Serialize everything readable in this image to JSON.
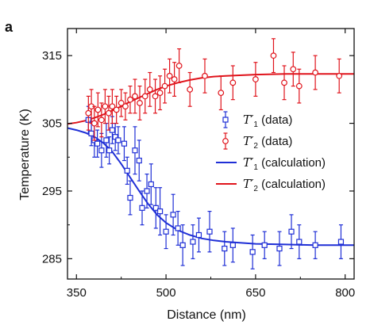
{
  "chart_data": {
    "type": "scatter",
    "panel_label": "a",
    "xlabel": "Distance (nm)",
    "ylabel": "Temperature (K)",
    "xlim": [
      335,
      815
    ],
    "ylim": [
      282,
      319
    ],
    "x_ticks": [
      350,
      500,
      650,
      800
    ],
    "y_ticks": [
      285,
      295,
      305,
      315
    ],
    "grid": false,
    "legend_position": "right",
    "colors": {
      "t1": "#1f2fd6",
      "t2": "#e0141c"
    },
    "series": [
      {
        "name": "T′1 (data)",
        "symbol": "T′",
        "subscript": "1",
        "suffix": " (data)",
        "kind": "points",
        "marker": "square",
        "color": "#1f2fd6",
        "points": [
          {
            "x": 370,
            "y": 305.5,
            "err": 2.0
          },
          {
            "x": 375,
            "y": 303.5,
            "err": 1.8
          },
          {
            "x": 380,
            "y": 302.5,
            "err": 2.5
          },
          {
            "x": 385,
            "y": 302.0,
            "err": 2.0
          },
          {
            "x": 392,
            "y": 301.0,
            "err": 2.5
          },
          {
            "x": 400,
            "y": 302.5,
            "err": 2.5
          },
          {
            "x": 405,
            "y": 301.0,
            "err": 2.0
          },
          {
            "x": 410,
            "y": 304.0,
            "err": 2.0
          },
          {
            "x": 415,
            "y": 303.0,
            "err": 2.0
          },
          {
            "x": 420,
            "y": 302.5,
            "err": 2.0
          },
          {
            "x": 430,
            "y": 302.0,
            "err": 2.5
          },
          {
            "x": 435,
            "y": 298.0,
            "err": 2.0
          },
          {
            "x": 440,
            "y": 294.0,
            "err": 2.5
          },
          {
            "x": 448,
            "y": 301.0,
            "err": 3.5
          },
          {
            "x": 455,
            "y": 299.5,
            "err": 3.0
          },
          {
            "x": 460,
            "y": 292.5,
            "err": 2.5
          },
          {
            "x": 468,
            "y": 295.0,
            "err": 2.5
          },
          {
            "x": 475,
            "y": 296.0,
            "err": 3.0
          },
          {
            "x": 483,
            "y": 292.5,
            "err": 3.0
          },
          {
            "x": 490,
            "y": 292.0,
            "err": 3.5
          },
          {
            "x": 500,
            "y": 289.0,
            "err": 2.5
          },
          {
            "x": 512,
            "y": 291.5,
            "err": 3.0
          },
          {
            "x": 520,
            "y": 289.5,
            "err": 2.5
          },
          {
            "x": 528,
            "y": 287.0,
            "err": 3.0
          },
          {
            "x": 545,
            "y": 287.5,
            "err": 2.5
          },
          {
            "x": 555,
            "y": 288.5,
            "err": 2.5
          },
          {
            "x": 573,
            "y": 289.0,
            "err": 3.0
          },
          {
            "x": 598,
            "y": 286.5,
            "err": 2.5
          },
          {
            "x": 612,
            "y": 287.0,
            "err": 2.5
          },
          {
            "x": 645,
            "y": 286.0,
            "err": 2.5
          },
          {
            "x": 665,
            "y": 287.0,
            "err": 2.0
          },
          {
            "x": 690,
            "y": 286.5,
            "err": 2.5
          },
          {
            "x": 710,
            "y": 289.0,
            "err": 2.5
          },
          {
            "x": 723,
            "y": 287.5,
            "err": 2.5
          },
          {
            "x": 750,
            "y": 287.0,
            "err": 2.0
          },
          {
            "x": 793,
            "y": 287.5,
            "err": 2.5
          }
        ]
      },
      {
        "name": "T′2 (data)",
        "symbol": "T′",
        "subscript": "2",
        "suffix": " (data)",
        "kind": "points",
        "marker": "circle",
        "color": "#e0141c",
        "points": [
          {
            "x": 370,
            "y": 306.5,
            "err": 2.5
          },
          {
            "x": 375,
            "y": 307.5,
            "err": 2.5
          },
          {
            "x": 380,
            "y": 305.0,
            "err": 2.5
          },
          {
            "x": 386,
            "y": 307.0,
            "err": 2.5
          },
          {
            "x": 392,
            "y": 305.5,
            "err": 2.5
          },
          {
            "x": 398,
            "y": 307.5,
            "err": 2.5
          },
          {
            "x": 404,
            "y": 306.5,
            "err": 2.5
          },
          {
            "x": 410,
            "y": 307.5,
            "err": 2.5
          },
          {
            "x": 417,
            "y": 307.0,
            "err": 2.0
          },
          {
            "x": 425,
            "y": 308.0,
            "err": 2.0
          },
          {
            "x": 432,
            "y": 307.5,
            "err": 2.0
          },
          {
            "x": 440,
            "y": 308.5,
            "err": 2.0
          },
          {
            "x": 448,
            "y": 309.0,
            "err": 2.5
          },
          {
            "x": 456,
            "y": 308.0,
            "err": 2.5
          },
          {
            "x": 465,
            "y": 309.0,
            "err": 2.5
          },
          {
            "x": 473,
            "y": 310.0,
            "err": 2.5
          },
          {
            "x": 482,
            "y": 309.0,
            "err": 2.5
          },
          {
            "x": 490,
            "y": 309.5,
            "err": 2.5
          },
          {
            "x": 498,
            "y": 310.5,
            "err": 2.5
          },
          {
            "x": 506,
            "y": 312.0,
            "err": 2.5
          },
          {
            "x": 514,
            "y": 311.5,
            "err": 2.5
          },
          {
            "x": 522,
            "y": 313.5,
            "err": 2.5
          },
          {
            "x": 540,
            "y": 310.0,
            "err": 2.5
          },
          {
            "x": 565,
            "y": 312.0,
            "err": 2.5
          },
          {
            "x": 592,
            "y": 309.5,
            "err": 2.5
          },
          {
            "x": 612,
            "y": 311.0,
            "err": 2.5
          },
          {
            "x": 650,
            "y": 311.5,
            "err": 2.5
          },
          {
            "x": 680,
            "y": 315.0,
            "err": 2.5
          },
          {
            "x": 698,
            "y": 311.0,
            "err": 2.5
          },
          {
            "x": 713,
            "y": 313.0,
            "err": 2.5
          },
          {
            "x": 723,
            "y": 310.5,
            "err": 2.5
          },
          {
            "x": 750,
            "y": 312.5,
            "err": 2.5
          },
          {
            "x": 790,
            "y": 312.0,
            "err": 2.5
          }
        ]
      },
      {
        "name": "T′1 (calculation)",
        "symbol": "T′",
        "subscript": "1",
        "suffix": " (calculation)",
        "kind": "curve",
        "color": "#1f2fd6",
        "points": [
          {
            "x": 335,
            "y": 304.3
          },
          {
            "x": 350,
            "y": 304.0
          },
          {
            "x": 365,
            "y": 303.6
          },
          {
            "x": 380,
            "y": 303.0
          },
          {
            "x": 395,
            "y": 302.1
          },
          {
            "x": 410,
            "y": 300.8
          },
          {
            "x": 425,
            "y": 299.0
          },
          {
            "x": 440,
            "y": 297.0
          },
          {
            "x": 455,
            "y": 295.0
          },
          {
            "x": 470,
            "y": 293.1
          },
          {
            "x": 485,
            "y": 291.5
          },
          {
            "x": 500,
            "y": 290.3
          },
          {
            "x": 520,
            "y": 289.2
          },
          {
            "x": 540,
            "y": 288.5
          },
          {
            "x": 560,
            "y": 288.0
          },
          {
            "x": 580,
            "y": 287.7
          },
          {
            "x": 600,
            "y": 287.5
          },
          {
            "x": 650,
            "y": 287.2
          },
          {
            "x": 700,
            "y": 287.1
          },
          {
            "x": 750,
            "y": 287.0
          },
          {
            "x": 800,
            "y": 287.0
          },
          {
            "x": 815,
            "y": 287.0
          }
        ]
      },
      {
        "name": "T′2 (calculation)",
        "symbol": "T′",
        "subscript": "2",
        "suffix": " (calculation)",
        "kind": "curve",
        "color": "#e0141c",
        "points": [
          {
            "x": 335,
            "y": 304.9
          },
          {
            "x": 350,
            "y": 305.1
          },
          {
            "x": 365,
            "y": 305.4
          },
          {
            "x": 380,
            "y": 305.8
          },
          {
            "x": 395,
            "y": 306.3
          },
          {
            "x": 410,
            "y": 306.9
          },
          {
            "x": 425,
            "y": 307.5
          },
          {
            "x": 440,
            "y": 308.2
          },
          {
            "x": 455,
            "y": 308.8
          },
          {
            "x": 470,
            "y": 309.4
          },
          {
            "x": 485,
            "y": 310.0
          },
          {
            "x": 500,
            "y": 310.5
          },
          {
            "x": 520,
            "y": 311.0
          },
          {
            "x": 540,
            "y": 311.4
          },
          {
            "x": 560,
            "y": 311.7
          },
          {
            "x": 580,
            "y": 311.9
          },
          {
            "x": 600,
            "y": 312.0
          },
          {
            "x": 650,
            "y": 312.2
          },
          {
            "x": 700,
            "y": 312.3
          },
          {
            "x": 750,
            "y": 312.3
          },
          {
            "x": 800,
            "y": 312.3
          },
          {
            "x": 815,
            "y": 312.3
          }
        ]
      }
    ]
  }
}
